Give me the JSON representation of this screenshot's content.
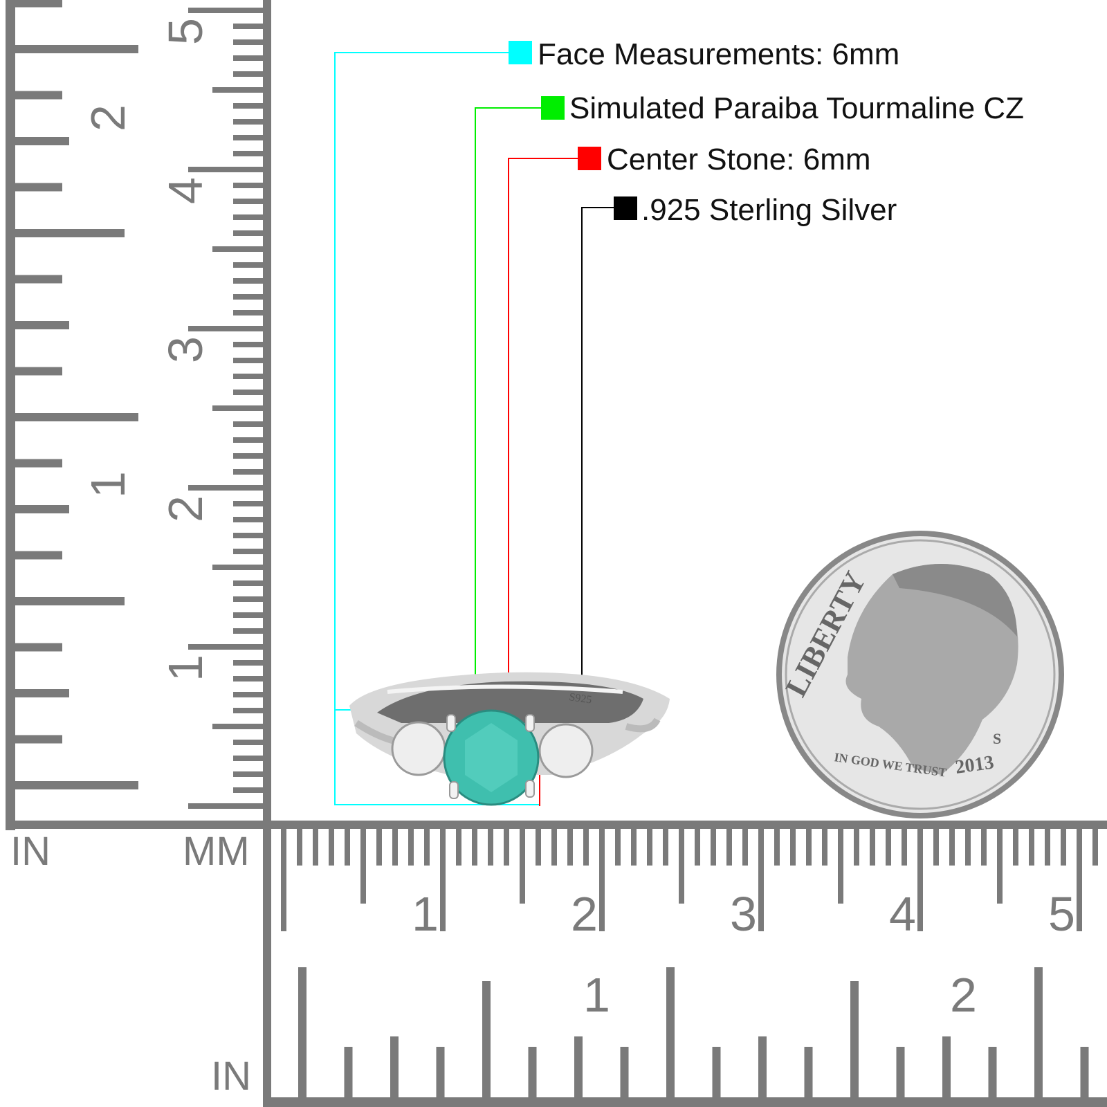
{
  "legend": [
    {
      "label": "Face Measurements: 6mm",
      "color": "#00ffff"
    },
    {
      "label": "Simulated Paraiba Tourmaline CZ",
      "color": "#00ee00"
    },
    {
      "label": "Center Stone: 6mm",
      "color": "#ff0000"
    },
    {
      "label": ".925 Sterling Silver",
      "color": "#000000"
    }
  ],
  "ruler": {
    "unit_in": "IN",
    "unit_mm": "MM",
    "unit_in_bottom": "IN",
    "vertical_inch_labels": [
      "1",
      "2"
    ],
    "vertical_cm_labels": [
      "1",
      "2",
      "3",
      "4",
      "5"
    ],
    "horizontal_cm_labels": [
      "1",
      "2",
      "3",
      "4",
      "5"
    ],
    "horizontal_inch_labels": [
      "1",
      "2"
    ],
    "color": "#7a7a7a"
  },
  "ring": {
    "stamp": "S925",
    "center_stone_color": "#3fbfae"
  },
  "coin": {
    "legend_top": "LIBERTY",
    "motto": "IN GOD WE TRUST",
    "year": "2013",
    "mint": "S"
  }
}
